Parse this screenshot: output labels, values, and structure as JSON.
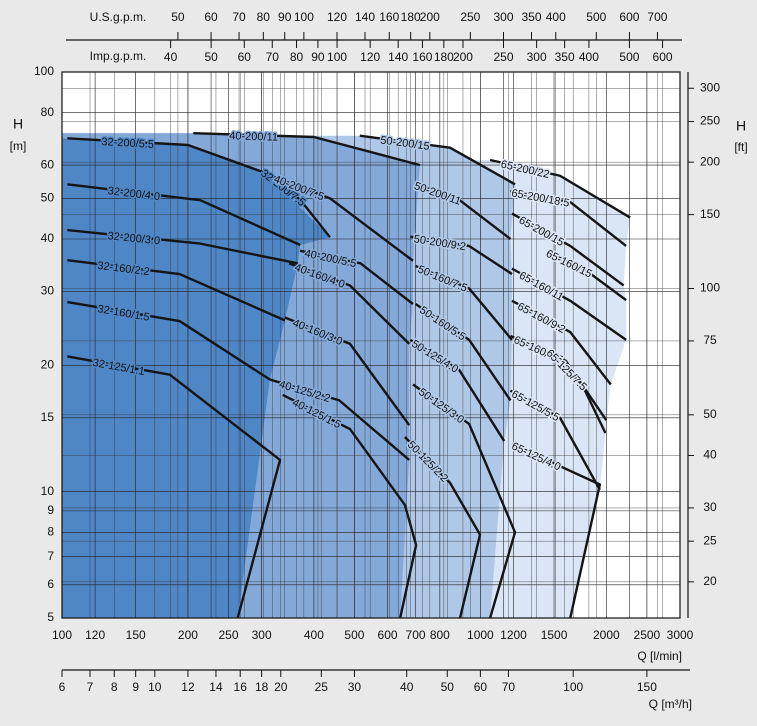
{
  "chart_data": {
    "type": "curve",
    "xlabel": "Q [l/min]",
    "ylabel": "H",
    "yunit": "[m]",
    "y2label": "H",
    "y2unit": "[ft]",
    "log_x": true,
    "log_y": true,
    "grid": true,
    "xlim": [
      100,
      3000
    ],
    "ylim": [
      5,
      100
    ],
    "xticks": [
      100,
      120,
      150,
      200,
      250,
      300,
      400,
      500,
      600,
      700,
      800,
      1000,
      1200,
      1500,
      2000,
      2500,
      3000
    ],
    "yticks": [
      5,
      6,
      7,
      8,
      9,
      10,
      15,
      20,
      30,
      40,
      50,
      60,
      80,
      100
    ],
    "y2lim": [
      16.4,
      328
    ],
    "y2ticks": [
      20,
      25,
      30,
      40,
      50,
      75,
      100,
      150,
      200,
      250,
      300
    ],
    "top_axes": [
      {
        "label": "U.S.g.p.m.",
        "lim": [
          26.42,
          792.5
        ],
        "ticks": [
          50,
          60,
          70,
          80,
          90,
          100,
          120,
          140,
          160,
          180,
          200,
          250,
          300,
          350,
          400,
          500,
          600,
          700
        ]
      },
      {
        "label": "Imp.g.p.m.",
        "lim": [
          22.0,
          660.5
        ],
        "ticks": [
          40,
          50,
          60,
          70,
          80,
          90,
          100,
          120,
          140,
          160,
          180,
          200,
          250,
          300,
          350,
          400,
          500,
          600
        ]
      }
    ],
    "bottom_axis": {
      "label": "Q [m³/h]",
      "lim": [
        6,
        180
      ],
      "ticks": [
        6,
        7,
        8,
        9,
        10,
        12,
        14,
        16,
        18,
        20,
        25,
        30,
        40,
        50,
        60,
        70,
        100,
        150
      ]
    },
    "groups": [
      {
        "color": "#4f86c6",
        "series": [
          {
            "name": "32-200/5.5",
            "x": [
              103,
              200,
              306
            ],
            "values": [
              69.5,
              67,
              57.5
            ]
          },
          {
            "name": "32-200/7.5",
            "x": [
              306,
              371,
              437
            ],
            "values": [
              57.5,
              49.6,
              40.4
            ]
          },
          {
            "name": "32-200/4.0",
            "x": [
              103,
              214,
              371
            ],
            "values": [
              54,
              49.5,
              38.7
            ]
          },
          {
            "name": "32-200/3.0",
            "x": [
              103,
              214,
              366
            ],
            "values": [
              42,
              39,
              35
            ]
          },
          {
            "name": "32-160/2.2",
            "x": [
              103,
              191,
              341
            ],
            "values": [
              35.6,
              33,
              25.6
            ]
          },
          {
            "name": "32-160/1.5",
            "x": [
              103,
              191,
              314
            ],
            "values": [
              28.3,
              25.5,
              18.5
            ]
          },
          {
            "name": "32-125/1.1",
            "x": [
              103,
              181,
              332,
              263
            ],
            "values": [
              21,
              19,
              11.9,
              5
            ]
          }
        ]
      },
      {
        "color": "#84a9d9",
        "series": [
          {
            "name": "40-200/11",
            "x": [
              206,
              400,
              717
            ],
            "values": [
              71.5,
              70,
              60
            ]
          },
          {
            "name": "40-200/7.5",
            "x": [
              310,
              437,
              690
            ],
            "values": [
              57,
              50,
              35.5
            ]
          },
          {
            "name": "40-200/5.5",
            "x": [
              371,
              517,
              690
            ],
            "values": [
              37.5,
              35,
              28
            ]
          },
          {
            "name": "40-160/4.0",
            "x": [
              349,
              488,
              676
            ],
            "values": [
              35,
              31,
              22.5
            ]
          },
          {
            "name": "40-160/3.0",
            "x": [
              341,
              488,
              676
            ],
            "values": [
              26,
              22.5,
              14.4
            ]
          },
          {
            "name": "40-125/2.2",
            "x": [
              314,
              460,
              676
            ],
            "values": [
              18.5,
              16.5,
              11.9
            ]
          },
          {
            "name": "40-125/1.5",
            "x": [
              337,
              488,
              660,
              702,
              643
            ],
            "values": [
              17,
              14.1,
              9.3,
              7.46,
              5
            ]
          }
        ]
      },
      {
        "color": "#b0c8e8",
        "series": [
          {
            "name": "50-200/15",
            "x": [
              515,
              846,
              1210
            ],
            "values": [
              70.5,
              66,
              54
            ]
          },
          {
            "name": "50-200/11",
            "x": [
              700,
              890,
              1180
            ],
            "values": [
              54,
              49.6,
              40
            ]
          },
          {
            "name": "50-200/9.2",
            "x": [
              680,
              940,
              1190
            ],
            "values": [
              40.5,
              38.5,
              33
            ]
          },
          {
            "name": "50-160/7.5",
            "x": [
              700,
              940,
              1190
            ],
            "values": [
              34.5,
              30.5,
              23
            ]
          },
          {
            "name": "50-160/5.5",
            "x": [
              700,
              940,
              1180
            ],
            "values": [
              28,
              23,
              16.5
            ]
          },
          {
            "name": "50-125/4.0",
            "x": [
              680,
              890,
              1140
            ],
            "values": [
              23,
              19.5,
              13.2
            ]
          },
          {
            "name": "50-125/3.0",
            "x": [
              690,
              940,
              1210,
              1055
            ],
            "values": [
              18,
              14.5,
              8,
              5
            ]
          },
          {
            "name": "50-125/2.2",
            "x": [
              660,
              846,
              998,
              894
            ],
            "values": [
              13.5,
              10.5,
              7.9,
              5
            ]
          }
        ]
      },
      {
        "color": "#dae6f5",
        "series": [
          {
            "name": "65-200/22",
            "x": [
              1055,
              1550,
              2280
            ],
            "values": [
              61.7,
              56.6,
              45
            ]
          },
          {
            "name": "65-200/18.5",
            "x": [
              1180,
              1640,
              2230
            ],
            "values": [
              52,
              49,
              38.5
            ]
          },
          {
            "name": "65-200/15",
            "x": [
              1190,
              1640,
              2200
            ],
            "values": [
              46,
              38.5,
              31
            ]
          },
          {
            "name": "65-160/15",
            "x": [
              1470,
              1800,
              2230
            ],
            "values": [
              37,
              33.5,
              28.6
            ]
          },
          {
            "name": "65-160/11",
            "x": [
              1190,
              1640,
              2230
            ],
            "values": [
              34,
              28.5,
              23
            ]
          },
          {
            "name": "65-160/9.2",
            "x": [
              1190,
              1640,
              2050
            ],
            "values": [
              28.5,
              24,
              18
            ]
          },
          {
            "name": "65-160/7.5",
            "x": [
              1180,
              1600,
              2000
            ],
            "values": [
              23.5,
              20.5,
              14.8
            ]
          },
          {
            "name": "65-125/7.5",
            "x": [
              1470,
              1750,
              1990
            ],
            "values": [
              21.5,
              18,
              13.8
            ]
          },
          {
            "name": "65-125/5.5",
            "x": [
              1180,
              1550,
              1930
            ],
            "values": [
              17.4,
              15,
              10.1
            ]
          },
          {
            "name": "65-125/4.0",
            "x": [
              1190,
              1550,
              1930,
              1640
            ],
            "values": [
              13,
              11.5,
              10.4,
              5
            ]
          }
        ]
      }
    ]
  }
}
